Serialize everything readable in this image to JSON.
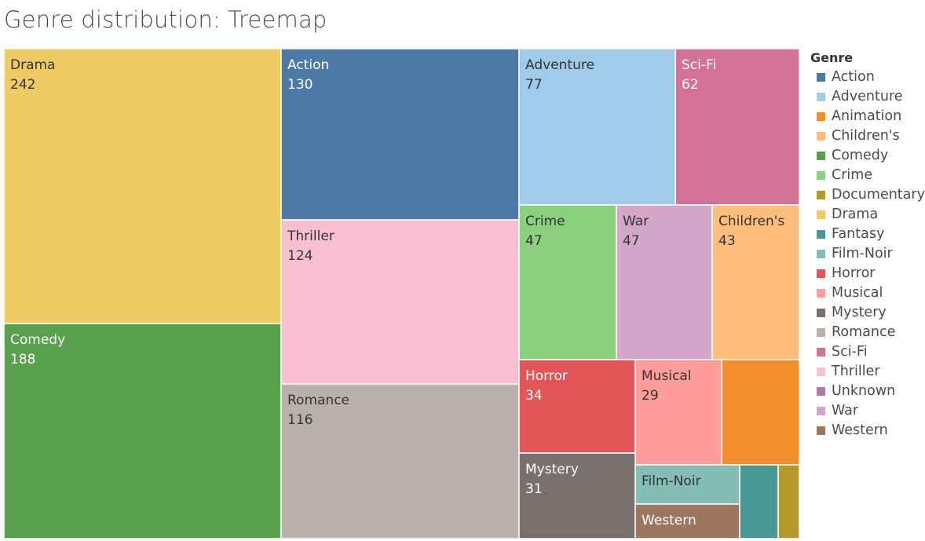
{
  "title": "Genre distribution: Treemap",
  "chart_data": {
    "type": "treemap",
    "title": "Genre distribution: Treemap",
    "legend_title": "Genre",
    "legend_position": "right",
    "items": [
      {
        "name": "Drama",
        "value": 242,
        "color": "#eecb65",
        "label_color": "#333333"
      },
      {
        "name": "Comedy",
        "value": 188,
        "color": "#59a14f",
        "label_color": "#ffffff"
      },
      {
        "name": "Action",
        "value": 130,
        "color": "#4e79a7",
        "label_color": "#ffffff"
      },
      {
        "name": "Thriller",
        "value": 124,
        "color": "#f8bfd3",
        "label_color": "#333333"
      },
      {
        "name": "Romance",
        "value": 116,
        "color": "#bab0ac",
        "label_color": "#333333"
      },
      {
        "name": "Adventure",
        "value": 77,
        "color": "#a0cbe8",
        "label_color": "#333333"
      },
      {
        "name": "Sci-Fi",
        "value": 62,
        "color": "#d37295",
        "label_color": "#ffffff"
      },
      {
        "name": "Crime",
        "value": 47,
        "color": "#8cd17d",
        "label_color": "#333333"
      },
      {
        "name": "War",
        "value": 47,
        "color": "#d4a6c8",
        "label_color": "#333333"
      },
      {
        "name": "Children's",
        "value": 43,
        "color": "#ffbe7d",
        "label_color": "#333333"
      },
      {
        "name": "Horror",
        "value": 34,
        "color": "#e15759",
        "label_color": "#ffffff"
      },
      {
        "name": "Musical",
        "value": 29,
        "color": "#ff9d9a",
        "label_color": "#333333"
      },
      {
        "name": "Mystery",
        "value": 31,
        "color": "#79706e",
        "label_color": "#ffffff"
      },
      {
        "name": "Animation",
        "value": 27,
        "color": "#f28e2b",
        "label_color": "#ffffff",
        "show_label": false
      },
      {
        "name": "Film-Noir",
        "value": 16,
        "color": "#86bcb6",
        "label_color": "#333333",
        "show_value": false
      },
      {
        "name": "Western",
        "value": 12,
        "color": "#9d7660",
        "label_color": "#ffffff",
        "show_value": false
      },
      {
        "name": "Fantasy",
        "value": 8,
        "color": "#499894",
        "label_color": "#ffffff",
        "show_label": false
      },
      {
        "name": "Documentary",
        "value": 5,
        "color": "#b6992d",
        "label_color": "#ffffff",
        "show_label": false
      }
    ],
    "legend": [
      {
        "label": "Action",
        "color": "#4e79a7"
      },
      {
        "label": "Adventure",
        "color": "#a0cbe8"
      },
      {
        "label": "Animation",
        "color": "#f28e2b"
      },
      {
        "label": "Children's",
        "color": "#ffbe7d"
      },
      {
        "label": "Comedy",
        "color": "#59a14f"
      },
      {
        "label": "Crime",
        "color": "#8cd17d"
      },
      {
        "label": "Documentary",
        "color": "#b6992d"
      },
      {
        "label": "Drama",
        "color": "#eecb65"
      },
      {
        "label": "Fantasy",
        "color": "#499894"
      },
      {
        "label": "Film-Noir",
        "color": "#86bcb6"
      },
      {
        "label": "Horror",
        "color": "#e15759"
      },
      {
        "label": "Musical",
        "color": "#ff9d9a"
      },
      {
        "label": "Mystery",
        "color": "#79706e"
      },
      {
        "label": "Romance",
        "color": "#bab0ac"
      },
      {
        "label": "Sci-Fi",
        "color": "#d37295"
      },
      {
        "label": "Thriller",
        "color": "#fabfd2"
      },
      {
        "label": "Unknown",
        "color": "#b07aa1"
      },
      {
        "label": "War",
        "color": "#d4a6c8"
      },
      {
        "label": "Western",
        "color": "#9d7660"
      }
    ]
  }
}
